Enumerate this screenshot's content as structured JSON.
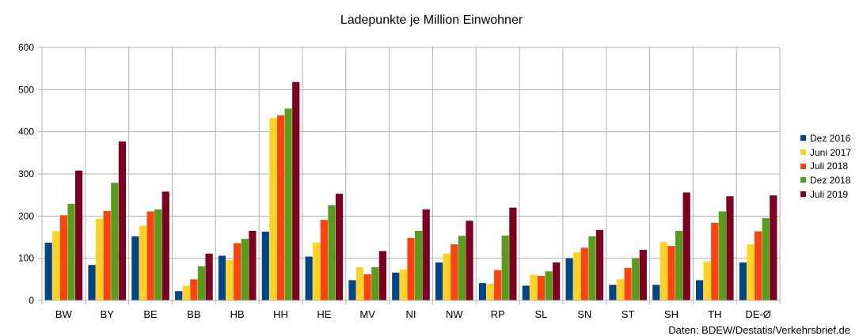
{
  "chart_data": {
    "type": "bar",
    "title": "Ladepunkte je Million Einwohner",
    "xlabel": "",
    "ylabel": "",
    "ylim": [
      0,
      600
    ],
    "yticks": [
      0,
      100,
      200,
      300,
      400,
      500,
      600
    ],
    "grid": true,
    "legend_position": "right",
    "categories": [
      "BW",
      "BY",
      "BE",
      "BB",
      "HB",
      "HH",
      "HE",
      "MV",
      "NI",
      "NW",
      "RP",
      "SL",
      "SN",
      "ST",
      "SH",
      "TH",
      "DE-Ø"
    ],
    "series": [
      {
        "name": "Dez 2016",
        "color": "#004586",
        "values": [
          137,
          84,
          152,
          22,
          106,
          163,
          104,
          48,
          66,
          90,
          41,
          35,
          100,
          37,
          37,
          48,
          90
        ]
      },
      {
        "name": "Juni 2017",
        "color": "#ffd320",
        "values": [
          164,
          194,
          177,
          35,
          96,
          433,
          137,
          79,
          73,
          111,
          39,
          61,
          114,
          50,
          138,
          92,
          133
        ]
      },
      {
        "name": "Juli 2018",
        "color": "#ff420e",
        "values": [
          202,
          212,
          211,
          50,
          136,
          439,
          191,
          62,
          148,
          133,
          72,
          58,
          125,
          77,
          129,
          184,
          164
        ]
      },
      {
        "name": "Dez 2018",
        "color": "#579d1c",
        "values": [
          229,
          279,
          216,
          81,
          146,
          455,
          226,
          79,
          165,
          153,
          154,
          69,
          152,
          100,
          165,
          211,
          195
        ]
      },
      {
        "name": "Juli 2019",
        "color": "#7e0021",
        "values": [
          308,
          377,
          258,
          111,
          165,
          518,
          253,
          117,
          216,
          189,
          220,
          90,
          167,
          120,
          256,
          247,
          249
        ]
      }
    ]
  },
  "source_note": "Daten: BDEW/Destatis/Verkehrsbrief.de"
}
